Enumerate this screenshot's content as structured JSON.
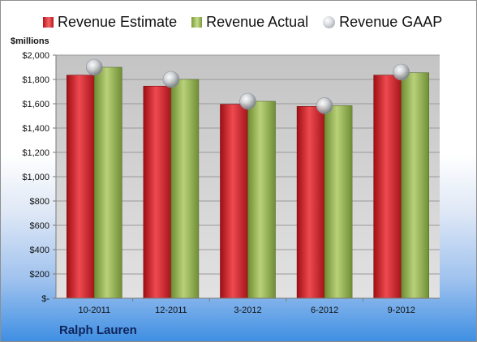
{
  "legend": {
    "estimate": "Revenue Estimate",
    "actual": "Revenue Actual",
    "gaap": "Revenue GAAP"
  },
  "units_label": "$millions",
  "company": "Ralph Lauren",
  "colors": {
    "estimate": "#c0171d",
    "actual": "#8fad4f",
    "gaap": "#c8cbd0"
  },
  "chart_data": {
    "type": "bar",
    "categories": [
      "10-2011",
      "12-2011",
      "3-2012",
      "6-2012",
      "9-2012"
    ],
    "series": [
      {
        "name": "Revenue Estimate",
        "values": [
          1835,
          1745,
          1595,
          1578,
          1835
        ]
      },
      {
        "name": "Revenue Actual",
        "values": [
          1900,
          1800,
          1620,
          1584,
          1855
        ]
      },
      {
        "name": "Revenue GAAP",
        "values": [
          1900,
          1800,
          1620,
          1584,
          1860
        ]
      }
    ],
    "ylabel": "$millions",
    "ylim": [
      0,
      2000
    ],
    "yticks": [
      "$-",
      "$200",
      "$400",
      "$600",
      "$800",
      "$1,000",
      "$1,200",
      "$1,400",
      "$1,600",
      "$1,800",
      "$2,000"
    ],
    "grid": true,
    "legend_position": "top"
  }
}
